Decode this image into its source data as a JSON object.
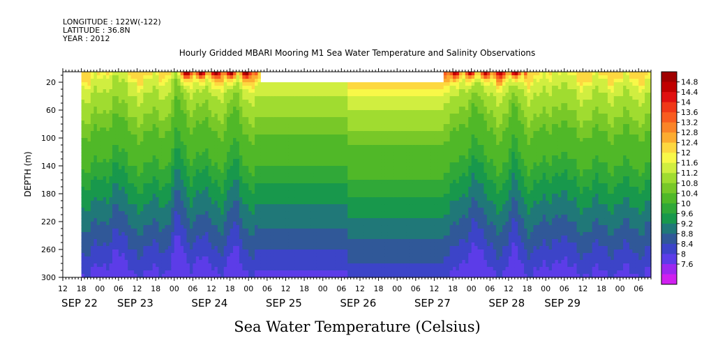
{
  "header": {
    "longitude": "LONGITUDE : 122W(-122)",
    "latitude": "LATITUDE : 36.8N",
    "year": "YEAR : 2012"
  },
  "chart_data": {
    "type": "heatmap",
    "title": "Hourly Gridded MBARI Mooring M1 Sea Water Temperature and Salinity Observations",
    "xlabel": "Sea Water Temperature (Celsius)",
    "ylabel": "DEPTH (m)",
    "y_axis": {
      "ticks": [
        20,
        60,
        100,
        140,
        180,
        220,
        260,
        300
      ],
      "range": [
        300,
        5
      ],
      "inverted": true
    },
    "x_axis": {
      "range_hours": [
        0,
        190
      ],
      "hour_ticks": [
        {
          "h": 0,
          "label": "12"
        },
        {
          "h": 6,
          "label": "18"
        },
        {
          "h": 12,
          "label": "00"
        },
        {
          "h": 18,
          "label": "06"
        },
        {
          "h": 24,
          "label": "12"
        },
        {
          "h": 30,
          "label": "18"
        },
        {
          "h": 36,
          "label": "00"
        },
        {
          "h": 42,
          "label": "06"
        },
        {
          "h": 48,
          "label": "12"
        },
        {
          "h": 54,
          "label": "18"
        },
        {
          "h": 60,
          "label": "00"
        },
        {
          "h": 66,
          "label": "06"
        },
        {
          "h": 72,
          "label": "12"
        },
        {
          "h": 78,
          "label": "18"
        },
        {
          "h": 84,
          "label": "00"
        },
        {
          "h": 90,
          "label": "06"
        },
        {
          "h": 96,
          "label": "12"
        },
        {
          "h": 102,
          "label": "18"
        },
        {
          "h": 108,
          "label": "00"
        },
        {
          "h": 114,
          "label": "06"
        },
        {
          "h": 120,
          "label": "12"
        },
        {
          "h": 126,
          "label": "18"
        },
        {
          "h": 132,
          "label": "00"
        },
        {
          "h": 138,
          "label": "06"
        },
        {
          "h": 144,
          "label": "12"
        },
        {
          "h": 150,
          "label": "18"
        },
        {
          "h": 156,
          "label": "00"
        },
        {
          "h": 162,
          "label": "06"
        },
        {
          "h": 168,
          "label": "12"
        },
        {
          "h": 174,
          "label": "18"
        },
        {
          "h": 180,
          "label": "00"
        },
        {
          "h": 186,
          "label": "06"
        }
      ],
      "day_labels": [
        {
          "h": 0,
          "label": "SEP 22"
        },
        {
          "h": 18,
          "label": "SEP 23"
        },
        {
          "h": 42,
          "label": "SEP 24"
        },
        {
          "h": 66,
          "label": "SEP 25"
        },
        {
          "h": 90,
          "label": "SEP 26"
        },
        {
          "h": 114,
          "label": "SEP 27"
        },
        {
          "h": 138,
          "label": "SEP 28"
        },
        {
          "h": 156,
          "label": "SEP 29"
        }
      ]
    },
    "data_start_hour": 6,
    "gaps": [
      {
        "x_hours": [
          64,
          123
        ],
        "depth": [
          5,
          20
        ]
      }
    ],
    "depth_profile": [
      {
        "depth": 10,
        "temp": 12.2
      },
      {
        "depth": 20,
        "temp": 11.6
      },
      {
        "depth": 40,
        "temp": 11.2
      },
      {
        "depth": 70,
        "temp": 10.8
      },
      {
        "depth": 100,
        "temp": 10.3
      },
      {
        "depth": 140,
        "temp": 10.0
      },
      {
        "depth": 180,
        "temp": 9.4
      },
      {
        "depth": 220,
        "temp": 8.9
      },
      {
        "depth": 260,
        "temp": 8.4
      },
      {
        "depth": 300,
        "temp": 7.9
      }
    ],
    "upwelling_events": [
      {
        "hour": 17,
        "depth_shift": 35
      },
      {
        "hour": 37,
        "depth_shift": 45
      },
      {
        "hour": 44,
        "depth_shift": 25
      },
      {
        "hour": 55,
        "depth_shift": 30
      },
      {
        "hour": 133,
        "depth_shift": 50
      },
      {
        "hour": 146,
        "depth_shift": 30
      },
      {
        "hour": 160,
        "depth_shift": 25
      }
    ],
    "surface_warm_periods": [
      {
        "hours": [
          37,
          63
        ],
        "temp": 14.9
      },
      {
        "hours": [
          123,
          150
        ],
        "temp": 14.6
      }
    ],
    "interpolated_segments": [
      {
        "hours": [
          63,
          92
        ],
        "shift": 0
      },
      {
        "hours": [
          92,
          123
        ],
        "shift": -18
      }
    ],
    "colorbar": {
      "labels": [
        "14.8",
        "14.4",
        "14",
        "13.6",
        "13.2",
        "12.8",
        "12.4",
        "12",
        "11.6",
        "11.2",
        "10.8",
        "10.4",
        "10",
        "9.6",
        "9.2",
        "8.8",
        "8.4",
        "8",
        "7.6"
      ],
      "colors": [
        "#a00000",
        "#c00000",
        "#e01010",
        "#f03818",
        "#f85c20",
        "#fa8428",
        "#fcac30",
        "#fdd840",
        "#f8f848",
        "#d0ee40",
        "#a0dc30",
        "#78c828",
        "#50b828",
        "#30a838",
        "#18984c",
        "#207878",
        "#305898",
        "#3c44c8",
        "#5c3ce8",
        "#9c28f0",
        "#d020f0"
      ]
    }
  }
}
